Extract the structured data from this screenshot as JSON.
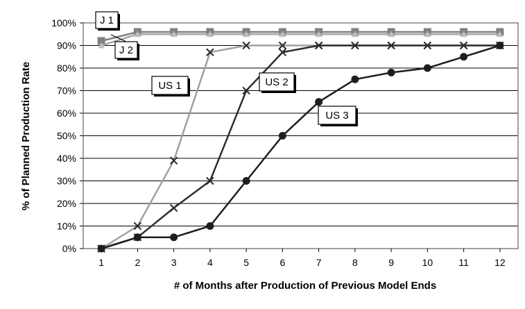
{
  "chart_data": {
    "type": "line",
    "title": "",
    "xlabel": "# of Months after Production of Previous Model Ends",
    "ylabel": "% of Planned Production Rate",
    "x": [
      1,
      2,
      3,
      4,
      5,
      6,
      7,
      8,
      9,
      10,
      11,
      12
    ],
    "xlim": [
      0.5,
      12.5
    ],
    "ylim": [
      0,
      100
    ],
    "y_ticks": [
      "0%",
      "10%",
      "20%",
      "30%",
      "40%",
      "50%",
      "60%",
      "70%",
      "80%",
      "90%",
      "100%"
    ],
    "grid": "horizontal",
    "series": [
      {
        "name": "J 1",
        "color": "#808080",
        "marker": "square",
        "values": [
          92,
          96,
          96,
          96,
          96,
          96,
          96,
          96,
          96,
          96,
          96,
          96
        ]
      },
      {
        "name": "J 2",
        "color": "#a8a8a8",
        "marker": "triangle",
        "values": [
          90,
          95,
          95,
          95,
          95,
          95,
          95,
          95,
          95,
          95,
          95,
          95
        ]
      },
      {
        "name": "US 1",
        "color": "#a0a0a0",
        "marker": "x",
        "values": [
          0,
          10,
          39,
          87,
          90,
          90,
          90,
          90,
          90,
          90,
          90,
          90
        ]
      },
      {
        "name": "US 2",
        "color": "#2e2e2e",
        "marker": "x",
        "values": [
          0,
          5,
          18,
          30,
          70,
          87,
          90,
          90,
          90,
          90,
          90,
          90
        ]
      },
      {
        "name": "US 3",
        "color": "#1e1e1e",
        "marker": "circle",
        "values": [
          0,
          5,
          5,
          10,
          30,
          50,
          65,
          75,
          78,
          80,
          85,
          90
        ]
      }
    ]
  }
}
